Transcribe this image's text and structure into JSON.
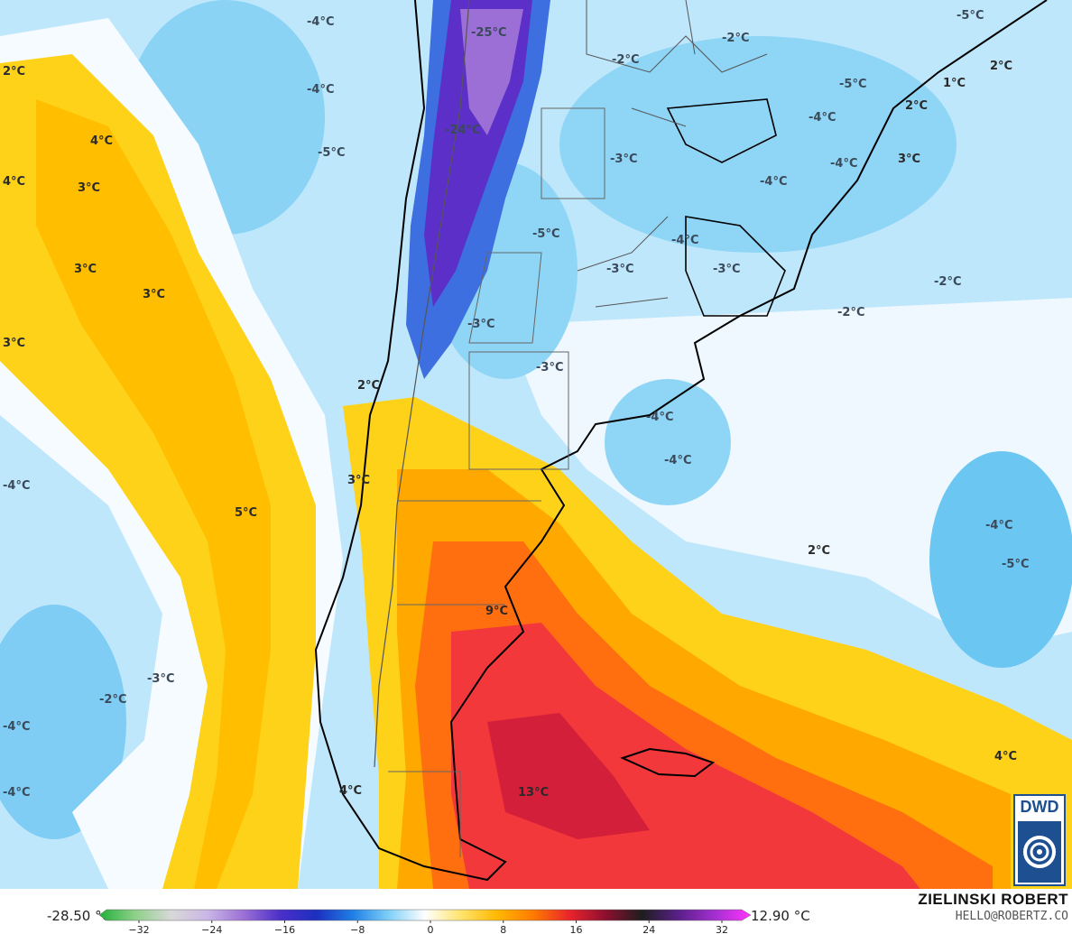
{
  "map": {
    "labels": [
      {
        "id": "t1",
        "text": "-4°C"
      },
      {
        "id": "t2",
        "text": "-25°C"
      },
      {
        "id": "t3",
        "text": "-2°C"
      },
      {
        "id": "t4",
        "text": "-2°C"
      },
      {
        "id": "t5",
        "text": "-5°C"
      },
      {
        "id": "t6",
        "text": "2°C"
      },
      {
        "id": "t7",
        "text": "-4°C"
      },
      {
        "id": "t8",
        "text": "-5°C"
      },
      {
        "id": "t9",
        "text": "1°C"
      },
      {
        "id": "t10",
        "text": "2°C"
      },
      {
        "id": "t11",
        "text": "-24°C"
      },
      {
        "id": "t12",
        "text": "-4°C"
      },
      {
        "id": "t13",
        "text": "4°C"
      },
      {
        "id": "t14",
        "text": "-5°C"
      },
      {
        "id": "t15",
        "text": "-3°C"
      },
      {
        "id": "t16",
        "text": "-4°C"
      },
      {
        "id": "t17",
        "text": "2°C"
      },
      {
        "id": "t18",
        "text": "4°C"
      },
      {
        "id": "t19",
        "text": "3°C"
      },
      {
        "id": "t20",
        "text": "-4°C"
      },
      {
        "id": "t21",
        "text": "-5°C"
      },
      {
        "id": "t22",
        "text": "-4°C"
      },
      {
        "id": "t23",
        "text": "3°C"
      },
      {
        "id": "t24",
        "text": "3°C"
      },
      {
        "id": "t25",
        "text": "-3°C"
      },
      {
        "id": "t26",
        "text": "-3°C"
      },
      {
        "id": "t27",
        "text": "-2°C"
      },
      {
        "id": "t28",
        "text": "-2°C"
      },
      {
        "id": "t29",
        "text": "3°C"
      },
      {
        "id": "t30",
        "text": "-3°C"
      },
      {
        "id": "t31",
        "text": "-3°C"
      },
      {
        "id": "t32",
        "text": "2°C"
      },
      {
        "id": "t33",
        "text": "-4°C"
      },
      {
        "id": "t34",
        "text": "-4°C"
      },
      {
        "id": "t35",
        "text": "-4°C"
      },
      {
        "id": "t36",
        "text": "3°C"
      },
      {
        "id": "t37",
        "text": "5°C"
      },
      {
        "id": "t38",
        "text": "3°C"
      },
      {
        "id": "t39",
        "text": "-4°C"
      },
      {
        "id": "t40",
        "text": "2°C"
      },
      {
        "id": "t41",
        "text": "-5°C"
      },
      {
        "id": "t42",
        "text": "9°C"
      },
      {
        "id": "t43",
        "text": "-3°C"
      },
      {
        "id": "t44",
        "text": "-2°C"
      },
      {
        "id": "t45",
        "text": "-4°C"
      },
      {
        "id": "t46",
        "text": "4°C"
      },
      {
        "id": "t47",
        "text": "13°C"
      },
      {
        "id": "t48",
        "text": "-4°C"
      },
      {
        "id": "t49",
        "text": "4°C"
      }
    ]
  },
  "colorbar": {
    "min_label": "-28.50 °C",
    "max_label": "12.90 °C",
    "ticks": [
      {
        "value": -32,
        "label": "−32"
      },
      {
        "value": -24,
        "label": "−24"
      },
      {
        "value": -16,
        "label": "−16"
      },
      {
        "value": -8,
        "label": "−8"
      },
      {
        "value": 0,
        "label": "0"
      },
      {
        "value": 8,
        "label": "8"
      },
      {
        "value": 16,
        "label": "16"
      },
      {
        "value": 24,
        "label": "24"
      },
      {
        "value": 32,
        "label": "32"
      }
    ],
    "range": [
      -32,
      32
    ],
    "colors": [
      "#22b03a",
      "#8fd18a",
      "#d8d8d8",
      "#c9b6e6",
      "#9b6fd6",
      "#4b2fc9",
      "#1c2fc0",
      "#1f7fe6",
      "#7fd0f7",
      "#ffffff",
      "#ffe36b",
      "#ffb800",
      "#ff7a00",
      "#e8242c",
      "#8c0f2f",
      "#1e1e1e",
      "#5a1f8a",
      "#a32fd0",
      "#ff33ff"
    ]
  },
  "credit": {
    "name": "ZIELINSKI ROBERT",
    "email": "HELLO@ROBERTZ.CO"
  },
  "logo": {
    "text": "DWD",
    "color": "#1d4f91"
  }
}
